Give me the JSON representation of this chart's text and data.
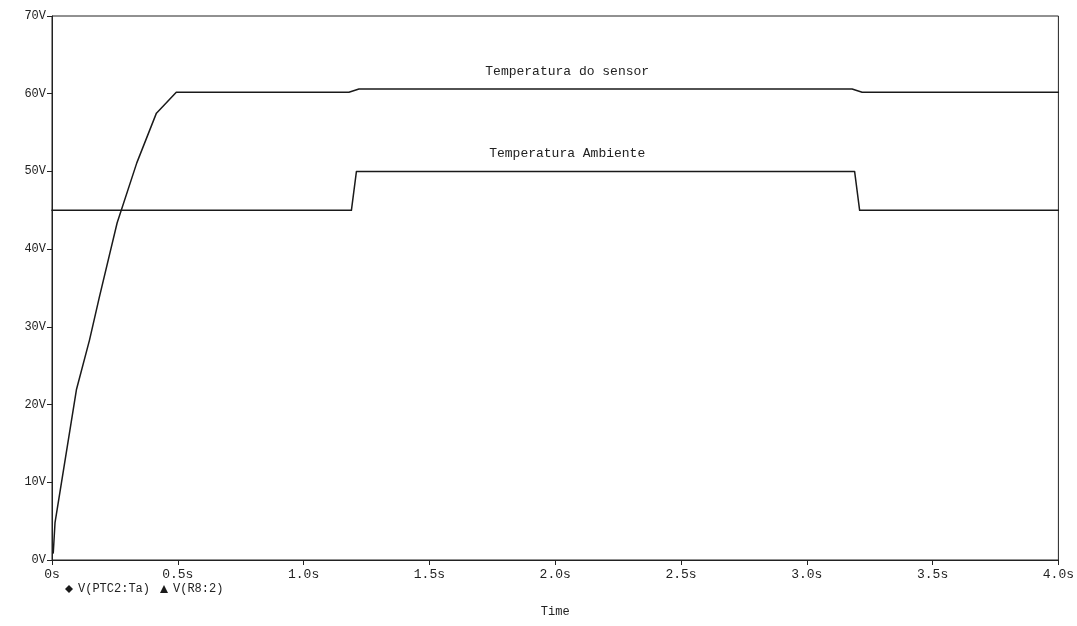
{
  "chart_data": {
    "type": "line",
    "xlabel": "Time",
    "series": [
      {
        "name": "V(PTC2:Ta)",
        "color": "#1a1a1a",
        "x": [
          0,
          1.19,
          1.21,
          3.19,
          3.21,
          4.0
        ],
        "values": [
          45,
          45,
          50,
          50,
          45,
          45
        ]
      },
      {
        "name": "V(R8:2)",
        "color": "#1a1a1a",
        "x": [
          0.005,
          0.012,
          0.097,
          0.149,
          0.188,
          0.259,
          0.337,
          0.415,
          0.494,
          1.18,
          1.22,
          3.18,
          3.22,
          4.0
        ],
        "values": [
          0.9,
          4.8,
          21.9,
          28.3,
          33.8,
          43.4,
          51.1,
          57.5,
          60.2,
          60.2,
          60.6,
          60.6,
          60.2,
          60.2
        ]
      }
    ],
    "xlim": [
      0,
      4.0
    ],
    "xticks": [
      {
        "value": 0,
        "label": "0s"
      },
      {
        "value": 0.5,
        "label": "0.5s"
      },
      {
        "value": 1.0,
        "label": "1.0s"
      },
      {
        "value": 1.5,
        "label": "1.5s"
      },
      {
        "value": 2.0,
        "label": "2.0s"
      },
      {
        "value": 2.5,
        "label": "2.5s"
      },
      {
        "value": 3.0,
        "label": "3.0s"
      },
      {
        "value": 3.5,
        "label": "3.5s"
      },
      {
        "value": 4.0,
        "label": "4.0s"
      }
    ],
    "ylim": [
      0,
      70
    ],
    "yticks": [
      {
        "value": 0,
        "label": "0V"
      },
      {
        "value": 10,
        "label": "10V"
      },
      {
        "value": 20,
        "label": "20V"
      },
      {
        "value": 30,
        "label": "30V"
      },
      {
        "value": 40,
        "label": "40V"
      },
      {
        "value": 50,
        "label": "50V"
      },
      {
        "value": 60,
        "label": "60V"
      },
      {
        "value": 70,
        "label": "70V"
      }
    ],
    "annotations": [
      "Temperatura do sensor",
      "Temperatura Ambiente"
    ],
    "grid": false,
    "legend": "bottom left",
    "marker": "none",
    "line_style": "solid"
  }
}
